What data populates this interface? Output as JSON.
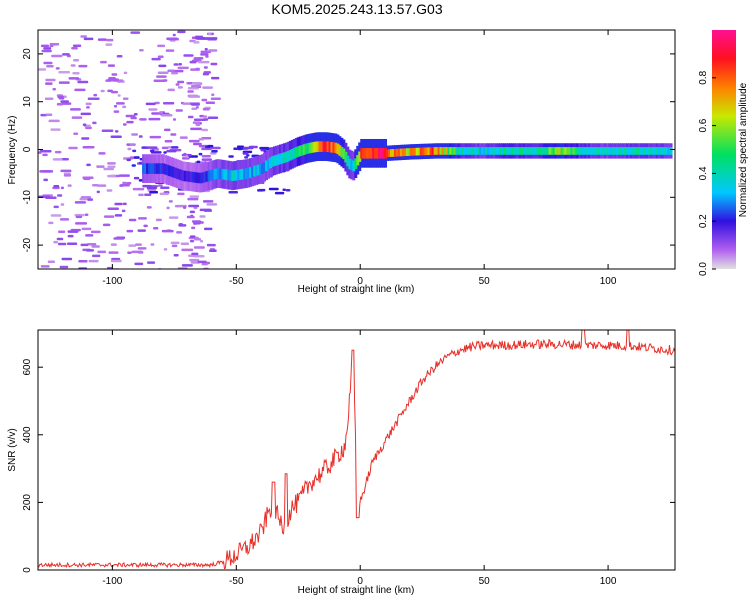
{
  "title": "KOM5.2025.243.13.57.G03",
  "colors": {
    "snr_line": "#e8302a",
    "frame": "#000000",
    "speckle": "#c9a0f0",
    "colorbar_stops": [
      "#e0e0e0",
      "#9a40e0",
      "#3010e0",
      "#00c8ff",
      "#00e060",
      "#e8e800",
      "#ff8000",
      "#ff1020",
      "#ff1090"
    ]
  },
  "chart_data": [
    {
      "type": "heatmap",
      "title": "KOM5.2025.243.13.57.G03",
      "xlabel": "Height of straight line (km)",
      "ylabel": "Frequency (Hz)",
      "xlim": [
        -130,
        127
      ],
      "ylim": [
        -25,
        25
      ],
      "xticks": [
        -100,
        -50,
        0,
        50,
        100
      ],
      "yticks": [
        -20,
        -10,
        0,
        10,
        20
      ],
      "colorbar_label": "Normalized spectral amplitude",
      "colorbar_range": [
        0.0,
        1.0
      ],
      "colorbar_ticks": [
        0.0,
        0.2,
        0.4,
        0.6,
        0.8
      ],
      "ridge": {
        "x": [
          -88,
          -80,
          -72,
          -65,
          -58,
          -52,
          -46,
          -40,
          -36,
          -30,
          -26,
          -22,
          -18,
          -14,
          -10,
          -7,
          -5,
          -3,
          0,
          5,
          10,
          20,
          30,
          40,
          50,
          60,
          70,
          80,
          90,
          100,
          110,
          125
        ],
        "frequency": [
          -4,
          -4,
          -5.5,
          -6,
          -5,
          -5.5,
          -5,
          -4,
          -2.5,
          -1.5,
          -0.5,
          0.2,
          0.6,
          0.6,
          0.3,
          -1,
          -3,
          -3.5,
          -0.8,
          -0.8,
          -0.8,
          -0.5,
          -0.3,
          -0.3,
          -0.3,
          -0.3,
          -0.3,
          -0.3,
          -0.3,
          -0.3,
          -0.3,
          -0.3
        ],
        "amplitude": [
          0.25,
          0.2,
          0.18,
          0.2,
          0.3,
          0.35,
          0.33,
          0.3,
          0.35,
          0.4,
          0.45,
          0.5,
          0.7,
          0.85,
          0.75,
          0.5,
          0.35,
          0.3,
          0.9,
          0.95,
          0.85,
          0.7,
          0.8,
          0.4,
          0.35,
          0.45,
          0.4,
          0.6,
          0.4,
          0.35,
          0.4,
          0.35
        ]
      }
    },
    {
      "type": "line",
      "xlabel": "Height of straight line (km)",
      "ylabel": "SNR (v/v)",
      "xlim": [
        -130,
        127
      ],
      "ylim": [
        0,
        710
      ],
      "xticks": [
        -100,
        -50,
        0,
        50,
        100
      ],
      "yticks": [
        0,
        200,
        400,
        600
      ],
      "series": [
        {
          "name": "SNR",
          "x": [
            -130,
            -120,
            -110,
            -100,
            -90,
            -80,
            -70,
            -60,
            -55,
            -50,
            -45,
            -40,
            -37,
            -35,
            -33,
            -30,
            -28,
            -25,
            -20,
            -15,
            -10,
            -6,
            -4,
            -3,
            -2,
            0,
            5,
            10,
            15,
            20,
            25,
            30,
            35,
            40,
            45,
            50,
            60,
            70,
            80,
            90,
            100,
            110,
            120,
            127
          ],
          "y": [
            15,
            15,
            15,
            15,
            15,
            15,
            15,
            15,
            25,
            45,
            70,
            110,
            170,
            200,
            150,
            120,
            180,
            200,
            260,
            290,
            330,
            370,
            520,
            640,
            420,
            200,
            320,
            380,
            440,
            500,
            560,
            600,
            630,
            650,
            660,
            665,
            665,
            668,
            668,
            665,
            665,
            662,
            655,
            650
          ],
          "spikes": [
            {
              "x": -35,
              "y": 260
            },
            {
              "x": -30,
              "y": 285
            },
            {
              "x": -3,
              "y": 650
            },
            {
              "x": -1,
              "y": 155
            },
            {
              "x": 90,
              "y": 710
            },
            {
              "x": 108,
              "y": 710
            }
          ]
        }
      ]
    }
  ]
}
